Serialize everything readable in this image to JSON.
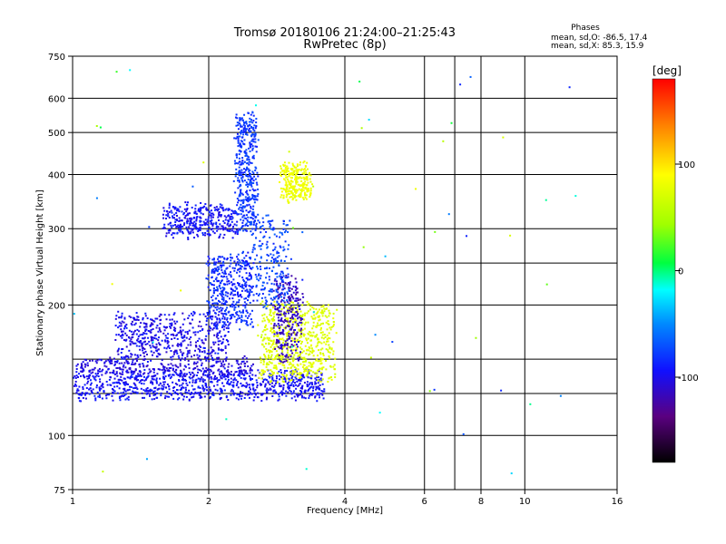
{
  "chart_data": {
    "type": "scatter",
    "title": "Tromsø 20180106 21:24:00–21:25:43",
    "subtitle": "RwPretec (8p)",
    "xlabel": "Frequency [MHz]",
    "ylabel": "Stationary phase Virtual Height [km]",
    "x_scale": "log",
    "y_scale": "log",
    "xlim": [
      1,
      16
    ],
    "ylim": [
      75,
      750
    ],
    "x_ticks": [
      1,
      2,
      4,
      6,
      8,
      10,
      16
    ],
    "x_tick_labels": [
      "1",
      "2",
      "4",
      "6",
      "8",
      "10",
      "16"
    ],
    "x_grid": [
      2,
      4,
      6,
      7,
      8,
      10
    ],
    "y_ticks": [
      75,
      100,
      200,
      300,
      400,
      500,
      600,
      750
    ],
    "y_tick_labels": [
      "75",
      "100",
      "200",
      "300",
      "400",
      "500",
      "600",
      "750"
    ],
    "y_grid": [
      100,
      125,
      150,
      200,
      250,
      300,
      400,
      500,
      600
    ],
    "grid": true,
    "stats": {
      "heading": "Phases",
      "line_o": "mean, sd,O: -86.5, 17.4",
      "line_x": "mean, sd,X:  85.3, 15.9"
    },
    "colorbar": {
      "label": "[deg]",
      "range": [
        -180,
        180
      ],
      "ticks": [
        100,
        0,
        -100
      ],
      "tick_labels": [
        "100",
        "0",
        "-100"
      ]
    },
    "traces": [
      {
        "f": [
          1.0,
          3.6
        ],
        "h": [
          140,
          122
        ],
        "phase": -95,
        "spread": 10,
        "n": 900
      },
      {
        "f": [
          1.0,
          2.5
        ],
        "h": [
          150,
          138
        ],
        "phase": -105,
        "spread": 9,
        "n": 300
      },
      {
        "f": [
          1.25,
          2.2
        ],
        "h": [
          150,
          190
        ],
        "phase": -100,
        "spread": 14,
        "n": 500
      },
      {
        "f": [
          1.6,
          2.3
        ],
        "h": [
          290,
          340
        ],
        "phase": -95,
        "spread": 12,
        "n": 350
      },
      {
        "f": [
          2.0,
          2.5
        ],
        "h": [
          180,
          260
        ],
        "phase": -85,
        "spread": 12,
        "n": 420
      },
      {
        "f": [
          2.3,
          2.55
        ],
        "h": [
          300,
          550
        ],
        "phase": -80,
        "spread": 10,
        "n": 420
      },
      {
        "f": [
          2.6,
          3.8
        ],
        "h": [
          135,
          200
        ],
        "phase": 75,
        "spread": 8,
        "n": 650
      },
      {
        "f": [
          2.9,
          3.35
        ],
        "h": [
          350,
          420
        ],
        "phase": 82,
        "spread": 6,
        "n": 260
      },
      {
        "f": [
          2.8,
          3.2
        ],
        "h": [
          150,
          230
        ],
        "phase": -115,
        "spread": 12,
        "n": 260
      },
      {
        "f": [
          2.5,
          3.0
        ],
        "h": [
          200,
          320
        ],
        "phase": -75,
        "spread": 12,
        "n": 220
      },
      {
        "f": [
          1.0,
          16.0
        ],
        "h": [
          75,
          750
        ],
        "phase": 0,
        "spread": 90,
        "n": 60
      }
    ]
  }
}
